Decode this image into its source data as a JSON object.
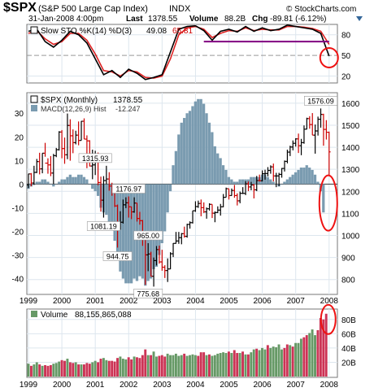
{
  "header": {
    "symbol": "$SPX",
    "name": "(S&P 500 Large Cap Index)",
    "exchange": "INDX",
    "date": "31-Jan-2008 4:00pm",
    "last_label": "Last",
    "last_value": "1378.55",
    "volume_label": "Volume",
    "volume_value": "88.2B",
    "chg_label": "Chg",
    "chg_value": "-89.81 (-6.12%)",
    "watermark": "© StockCharts.com"
  },
  "colors": {
    "up": "#000000",
    "down": "#cc0000",
    "stoch_k": "#000000",
    "stoch_d": "#dd2222",
    "macd_hist": "#7a9bb0",
    "support_line": "#800080",
    "circle": "#ee1111",
    "vol_up": "#669966",
    "vol_down": "#cc3355",
    "grid": "#dde6ee"
  },
  "chart_data": [
    {
      "panel": "stochastic",
      "type": "line",
      "title": "Slow STO %K(14) %D(3)",
      "k_value": "49.08",
      "d_value": "65.81",
      "y_ticks": [
        "80",
        "50",
        "20"
      ],
      "ylim": [
        10,
        95
      ],
      "x": [
        "1999-01",
        "1999-04",
        "1999-07",
        "1999-10",
        "2000-01",
        "2000-04",
        "2000-07",
        "2000-10",
        "2001-01",
        "2001-04",
        "2001-07",
        "2001-10",
        "2002-01",
        "2002-04",
        "2002-07",
        "2002-10",
        "2003-01",
        "2003-04",
        "2003-07",
        "2003-10",
        "2004-01",
        "2004-04",
        "2004-07",
        "2004-10",
        "2005-01",
        "2005-04",
        "2005-07",
        "2005-10",
        "2006-01",
        "2006-04",
        "2006-07",
        "2006-10",
        "2007-01",
        "2007-04",
        "2007-07",
        "2007-10",
        "2008-01"
      ],
      "k": [
        85,
        88,
        70,
        62,
        72,
        85,
        80,
        68,
        45,
        22,
        28,
        18,
        30,
        24,
        15,
        18,
        22,
        55,
        88,
        92,
        93,
        86,
        72,
        85,
        88,
        84,
        92,
        85,
        90,
        86,
        88,
        94,
        92,
        90,
        88,
        82,
        49
      ],
      "d": [
        82,
        86,
        74,
        66,
        70,
        82,
        82,
        72,
        52,
        28,
        26,
        20,
        28,
        26,
        18,
        17,
        20,
        45,
        80,
        90,
        92,
        88,
        76,
        82,
        86,
        85,
        90,
        86,
        88,
        87,
        87,
        92,
        92,
        91,
        89,
        85,
        66
      ],
      "support_level": 70
    },
    {
      "panel": "price",
      "type": "ohlc",
      "title": "$SPX (Monthly)",
      "last": "1378.55",
      "y_ticks": [
        "1600",
        "1500",
        "1400",
        "1300",
        "1200",
        "1100",
        "1000",
        "900",
        "800"
      ],
      "ylim": [
        740,
        1640
      ],
      "annotations": [
        "1315.93",
        "1081.19",
        "1176.97",
        "944.75",
        "965.00",
        "775.68",
        "1576.09"
      ],
      "bars": [
        [
          1999.0,
          1229,
          1280,
          1215,
          1279
        ],
        [
          1999.083,
          1279,
          1283,
          1223,
          1238
        ],
        [
          1999.167,
          1238,
          1316,
          1229,
          1286
        ],
        [
          1999.25,
          1286,
          1347,
          1283,
          1335
        ],
        [
          1999.333,
          1335,
          1375,
          1277,
          1302
        ],
        [
          1999.417,
          1302,
          1373,
          1282,
          1373
        ],
        [
          1999.5,
          1373,
          1420,
          1357,
          1328
        ],
        [
          1999.583,
          1328,
          1350,
          1280,
          1320
        ],
        [
          1999.667,
          1320,
          1360,
          1269,
          1283
        ],
        [
          1999.75,
          1283,
          1370,
          1233,
          1362
        ],
        [
          1999.833,
          1362,
          1397,
          1355,
          1389
        ],
        [
          1999.917,
          1389,
          1473,
          1385,
          1469
        ],
        [
          2000.0,
          1469,
          1478,
          1350,
          1394
        ],
        [
          2000.083,
          1394,
          1444,
          1325,
          1366
        ],
        [
          2000.167,
          1366,
          1553,
          1346,
          1499
        ],
        [
          2000.25,
          1499,
          1527,
          1339,
          1452
        ],
        [
          2000.333,
          1452,
          1481,
          1373,
          1421
        ],
        [
          2000.417,
          1421,
          1475,
          1413,
          1455
        ],
        [
          2000.5,
          1455,
          1517,
          1409,
          1431
        ],
        [
          2000.583,
          1431,
          1519,
          1431,
          1518
        ],
        [
          2000.667,
          1518,
          1531,
          1437,
          1437
        ],
        [
          2000.75,
          1437,
          1454,
          1305,
          1429
        ],
        [
          2000.833,
          1429,
          1432,
          1313,
          1315
        ],
        [
          2000.917,
          1315,
          1389,
          1255,
          1320
        ],
        [
          2001.0,
          1320,
          1384,
          1274,
          1366
        ],
        [
          2001.083,
          1366,
          1376,
          1228,
          1240
        ],
        [
          2001.167,
          1240,
          1267,
          1108,
          1160
        ],
        [
          2001.25,
          1160,
          1269,
          1081,
          1249
        ],
        [
          2001.333,
          1249,
          1316,
          1232,
          1256
        ],
        [
          2001.417,
          1256,
          1287,
          1203,
          1224
        ],
        [
          2001.5,
          1224,
          1239,
          1180,
          1211
        ],
        [
          2001.583,
          1211,
          1220,
          1129,
          1134
        ],
        [
          2001.667,
          1134,
          1140,
          945,
          1041
        ],
        [
          2001.75,
          1041,
          1110,
          1026,
          1060
        ],
        [
          2001.833,
          1060,
          1163,
          1054,
          1139
        ],
        [
          2001.917,
          1139,
          1173,
          1124,
          1148
        ],
        [
          2002.0,
          1148,
          1177,
          1081,
          1130
        ],
        [
          2002.083,
          1130,
          1131,
          1074,
          1107
        ],
        [
          2002.167,
          1107,
          1173,
          1103,
          1147
        ],
        [
          2002.25,
          1147,
          1147,
          1063,
          1077
        ],
        [
          2002.333,
          1077,
          1107,
          1049,
          1067
        ],
        [
          2002.417,
          1067,
          1070,
          953,
          990
        ],
        [
          2002.5,
          990,
          994,
          776,
          912
        ],
        [
          2002.583,
          912,
          965,
          838,
          916
        ],
        [
          2002.667,
          916,
          926,
          815,
          815
        ],
        [
          2002.75,
          815,
          900,
          768,
          886
        ],
        [
          2002.833,
          886,
          952,
          864,
          936
        ],
        [
          2002.917,
          936,
          954,
          872,
          880
        ],
        [
          2003.0,
          880,
          935,
          840,
          856
        ],
        [
          2003.083,
          856,
          865,
          807,
          841
        ],
        [
          2003.167,
          841,
          896,
          789,
          848
        ],
        [
          2003.25,
          848,
          924,
          847,
          917
        ],
        [
          2003.333,
          917,
          965,
          902,
          964
        ],
        [
          2003.417,
          964,
          1016,
          963,
          975
        ],
        [
          2003.5,
          975,
          1016,
          962,
          990
        ],
        [
          2003.583,
          990,
          1011,
          960,
          1008
        ],
        [
          2003.667,
          1008,
          1040,
          990,
          996
        ],
        [
          2003.75,
          996,
          1053,
          990,
          1050
        ],
        [
          2003.833,
          1050,
          1064,
          1031,
          1058
        ],
        [
          2003.917,
          1058,
          1112,
          1054,
          1112
        ],
        [
          2004.0,
          1112,
          1155,
          1107,
          1131
        ],
        [
          2004.083,
          1131,
          1158,
          1125,
          1145
        ],
        [
          2004.167,
          1145,
          1163,
          1087,
          1126
        ],
        [
          2004.25,
          1126,
          1150,
          1102,
          1107
        ],
        [
          2004.333,
          1107,
          1127,
          1076,
          1121
        ],
        [
          2004.417,
          1121,
          1146,
          1113,
          1141
        ],
        [
          2004.5,
          1141,
          1141,
          1079,
          1101
        ],
        [
          2004.583,
          1101,
          1109,
          1060,
          1104
        ],
        [
          2004.667,
          1104,
          1132,
          1102,
          1115
        ],
        [
          2004.75,
          1115,
          1143,
          1090,
          1130
        ],
        [
          2004.833,
          1130,
          1188,
          1128,
          1173
        ],
        [
          2004.917,
          1173,
          1217,
          1173,
          1212
        ],
        [
          2005.0,
          1212,
          1212,
          1163,
          1181
        ],
        [
          2005.083,
          1181,
          1213,
          1180,
          1204
        ],
        [
          2005.167,
          1204,
          1229,
          1171,
          1181
        ],
        [
          2005.25,
          1181,
          1191,
          1136,
          1157
        ],
        [
          2005.333,
          1157,
          1199,
          1146,
          1191
        ],
        [
          2005.417,
          1191,
          1219,
          1188,
          1191
        ],
        [
          2005.5,
          1191,
          1246,
          1183,
          1234
        ],
        [
          2005.583,
          1234,
          1245,
          1201,
          1220
        ],
        [
          2005.667,
          1220,
          1243,
          1205,
          1229
        ],
        [
          2005.75,
          1229,
          1233,
          1168,
          1207
        ],
        [
          2005.833,
          1207,
          1270,
          1201,
          1249
        ],
        [
          2005.917,
          1249,
          1276,
          1245,
          1248
        ],
        [
          2006.0,
          1248,
          1295,
          1245,
          1280
        ],
        [
          2006.083,
          1280,
          1298,
          1253,
          1281
        ],
        [
          2006.167,
          1281,
          1310,
          1268,
          1295
        ],
        [
          2006.25,
          1295,
          1318,
          1280,
          1311
        ],
        [
          2006.333,
          1311,
          1326,
          1245,
          1270
        ],
        [
          2006.417,
          1270,
          1284,
          1219,
          1270
        ],
        [
          2006.5,
          1270,
          1284,
          1224,
          1277
        ],
        [
          2006.583,
          1277,
          1306,
          1262,
          1304
        ],
        [
          2006.667,
          1304,
          1340,
          1290,
          1336
        ],
        [
          2006.75,
          1336,
          1389,
          1327,
          1378
        ],
        [
          2006.833,
          1378,
          1407,
          1360,
          1401
        ],
        [
          2006.917,
          1401,
          1431,
          1386,
          1418
        ],
        [
          2007.0,
          1418,
          1441,
          1403,
          1438
        ],
        [
          2007.083,
          1438,
          1462,
          1374,
          1407
        ],
        [
          2007.167,
          1407,
          1438,
          1364,
          1421
        ],
        [
          2007.25,
          1421,
          1499,
          1416,
          1482
        ],
        [
          2007.333,
          1482,
          1534,
          1481,
          1530
        ],
        [
          2007.417,
          1530,
          1541,
          1484,
          1503
        ],
        [
          2007.5,
          1503,
          1555,
          1455,
          1455
        ],
        [
          2007.583,
          1455,
          1503,
          1371,
          1474
        ],
        [
          2007.667,
          1474,
          1539,
          1453,
          1527
        ],
        [
          2007.75,
          1527,
          1576,
          1489,
          1549
        ],
        [
          2007.833,
          1549,
          1552,
          1407,
          1481
        ],
        [
          2007.917,
          1481,
          1523,
          1435,
          1468
        ],
        [
          2008.0,
          1468,
          1471,
          1271,
          1379
        ]
      ]
    },
    {
      "panel": "macd",
      "type": "bar",
      "title": "MACD(12,26,9) Hist",
      "value": "-12.247",
      "y_ticks": [
        "30",
        "20",
        "10",
        "0",
        "-10",
        "-20",
        "-30",
        "-40"
      ],
      "ylim": [
        -46,
        38
      ],
      "x_start": 1999.0,
      "x_step": 0.0833,
      "values": [
        -2,
        -1,
        0,
        1,
        1,
        2,
        2,
        1,
        0,
        -1,
        0,
        1,
        2,
        2,
        3,
        4,
        3,
        3,
        4,
        4,
        3,
        2,
        0,
        -2,
        -3,
        -5,
        -10,
        -12,
        -13,
        -16,
        -19,
        -24,
        -32,
        -37,
        -40,
        -42,
        -42,
        -42,
        -40,
        -41,
        -39,
        -40,
        -43,
        -41,
        -40,
        -36,
        -35,
        -30,
        -25,
        -20,
        -12,
        -3,
        8,
        14,
        21,
        26,
        28,
        30,
        31,
        33,
        35,
        36,
        36,
        34,
        30,
        26,
        22,
        16,
        13,
        11,
        8,
        6,
        3,
        2,
        1,
        1,
        2,
        2,
        2,
        2,
        3,
        3,
        3,
        3,
        4,
        4,
        3,
        2,
        1,
        0,
        -1,
        0,
        1,
        2,
        3,
        4,
        5,
        6,
        7,
        7,
        8,
        7,
        6,
        4,
        1,
        -3,
        -12
      ]
    },
    {
      "panel": "volume",
      "type": "bar",
      "title": "Volume",
      "value": "88,155,865,088",
      "y_ticks": [
        "80B",
        "60B",
        "40B",
        "20B"
      ],
      "ylim": [
        0,
        90
      ],
      "x_start": 1999.0,
      "x_step": 0.0833,
      "values": [
        18,
        15,
        17,
        20,
        17,
        15,
        16,
        15,
        16,
        18,
        19,
        21,
        23,
        22,
        25,
        20,
        19,
        20,
        17,
        17,
        17,
        19,
        18,
        20,
        22,
        20,
        25,
        26,
        23,
        22,
        22,
        21,
        26,
        28,
        25,
        24,
        27,
        24,
        28,
        27,
        26,
        30,
        38,
        30,
        30,
        35,
        28,
        29,
        30,
        28,
        32,
        30,
        30,
        32,
        29,
        30,
        32,
        29,
        30,
        31,
        30,
        29,
        34,
        34,
        30,
        31,
        29,
        30,
        32,
        33,
        34,
        33,
        35,
        33,
        37,
        33,
        33,
        35,
        31,
        31,
        34,
        38,
        39,
        37,
        40,
        38,
        44,
        40,
        42,
        41,
        45,
        38,
        40,
        45,
        44,
        42,
        47,
        47,
        53,
        55,
        58,
        61,
        66,
        58,
        65,
        82,
        80,
        88
      ],
      "up": [
        true,
        false,
        true,
        true,
        false,
        true,
        false,
        false,
        false,
        true,
        true,
        true,
        false,
        false,
        true,
        false,
        false,
        true,
        false,
        true,
        false,
        false,
        false,
        true,
        true,
        false,
        false,
        true,
        true,
        false,
        false,
        false,
        false,
        true,
        true,
        true,
        false,
        false,
        true,
        false,
        false,
        false,
        false,
        true,
        false,
        true,
        true,
        false,
        false,
        false,
        true,
        true,
        true,
        true,
        true,
        true,
        false,
        true,
        true,
        true,
        true,
        false,
        false,
        false,
        true,
        false,
        true,
        true,
        true,
        true,
        true,
        true,
        false,
        true,
        false,
        false,
        true,
        false,
        true,
        false,
        true,
        true,
        false,
        true,
        true,
        true,
        false,
        true,
        true,
        true,
        true,
        true,
        false,
        false,
        true,
        false,
        true,
        true,
        true,
        false,
        false,
        true,
        true,
        true,
        false,
        false,
        false,
        false
      ]
    }
  ],
  "x_axis": {
    "labels": [
      "1999",
      "2000",
      "2001",
      "2002",
      "2003",
      "2004",
      "2005",
      "2006",
      "2007",
      "2008"
    ]
  }
}
